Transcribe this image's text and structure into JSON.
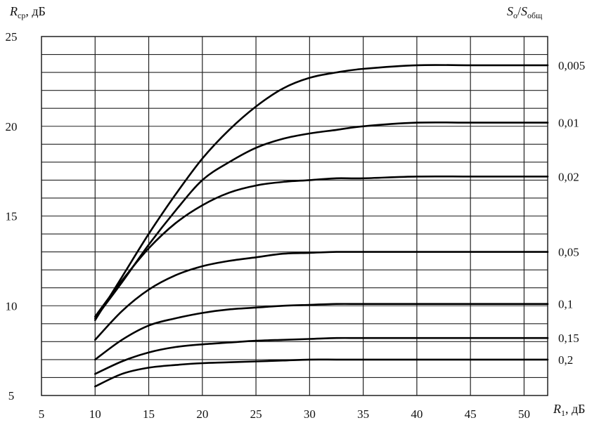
{
  "chart_data": {
    "type": "line",
    "title": "",
    "ylabel": {
      "main": "R",
      "sub": "ср",
      "unit": ", дБ"
    },
    "xlabel": {
      "main": "R",
      "sub": "1",
      "unit": ", дБ"
    },
    "right_label": {
      "a": "S",
      "a_sub": "о",
      "slash": "/",
      "b": "S",
      "b_sub": "общ"
    },
    "xlim": [
      5,
      52.2
    ],
    "ylim": [
      5,
      25
    ],
    "x_ticks": [
      "5",
      "10",
      "15",
      "20",
      "25",
      "30",
      "35",
      "40",
      "45",
      "50"
    ],
    "y_ticks": [
      "5",
      "10",
      "15",
      "20",
      "25"
    ],
    "grid": true,
    "series": [
      {
        "name": "0,005",
        "x": [
          10,
          12.5,
          15,
          17.5,
          20,
          22.5,
          25,
          27.5,
          30,
          32.5,
          35,
          40,
          45,
          50,
          52.2
        ],
        "y": [
          9.2,
          11.6,
          14.0,
          16.2,
          18.2,
          19.8,
          21.1,
          22.1,
          22.7,
          23.0,
          23.2,
          23.4,
          23.4,
          23.4,
          23.4
        ]
      },
      {
        "name": "0,01",
        "x": [
          10,
          12.5,
          15,
          17.5,
          20,
          22.5,
          25,
          27.5,
          30,
          32.5,
          35,
          40,
          45,
          50,
          52.2
        ],
        "y": [
          9.3,
          11.3,
          13.4,
          15.3,
          17.0,
          18.0,
          18.8,
          19.3,
          19.6,
          19.8,
          20.0,
          20.2,
          20.2,
          20.2,
          20.2
        ]
      },
      {
        "name": "0,02",
        "x": [
          10,
          12.5,
          15,
          17.5,
          20,
          22.5,
          25,
          27.5,
          30,
          32.5,
          35,
          40,
          45,
          50,
          52.2
        ],
        "y": [
          9.4,
          11.4,
          13.2,
          14.6,
          15.6,
          16.3,
          16.7,
          16.9,
          17.0,
          17.1,
          17.1,
          17.2,
          17.2,
          17.2,
          17.2
        ]
      },
      {
        "name": "0,05",
        "x": [
          10,
          12.5,
          15,
          17.5,
          20,
          22.5,
          25,
          27.5,
          30,
          32.5,
          35,
          40,
          45,
          50,
          52.2
        ],
        "y": [
          8.1,
          9.7,
          10.9,
          11.7,
          12.2,
          12.5,
          12.7,
          12.9,
          12.95,
          13.0,
          13.0,
          13.0,
          13.0,
          13.0,
          13.0
        ]
      },
      {
        "name": "0,1",
        "x": [
          10,
          12.5,
          15,
          17.5,
          20,
          22.5,
          25,
          27.5,
          30,
          32.5,
          35,
          40,
          45,
          50,
          52.2
        ],
        "y": [
          7.0,
          8.1,
          8.9,
          9.3,
          9.6,
          9.8,
          9.9,
          10.0,
          10.05,
          10.1,
          10.1,
          10.1,
          10.1,
          10.1,
          10.1
        ]
      },
      {
        "name": "0,15",
        "x": [
          10,
          12.5,
          15,
          17.5,
          20,
          22.5,
          25,
          27.5,
          30,
          32.5,
          35,
          40,
          45,
          50,
          52.2
        ],
        "y": [
          6.2,
          6.9,
          7.4,
          7.7,
          7.85,
          7.95,
          8.05,
          8.1,
          8.15,
          8.2,
          8.2,
          8.2,
          8.2,
          8.2,
          8.2
        ]
      },
      {
        "name": "0,2",
        "x": [
          10,
          12.5,
          15,
          17.5,
          20,
          22.5,
          25,
          27.5,
          30,
          32.5,
          35,
          40,
          45,
          50,
          52.2
        ],
        "y": [
          5.5,
          6.2,
          6.55,
          6.7,
          6.8,
          6.85,
          6.9,
          6.95,
          7.0,
          7.0,
          7.0,
          7.0,
          7.0,
          7.0,
          7.0
        ]
      }
    ]
  }
}
